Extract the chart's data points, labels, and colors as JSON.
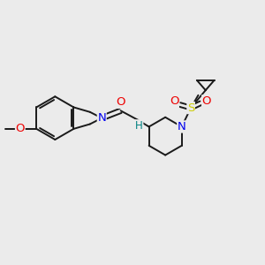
{
  "background_color": "#EBEBEB",
  "bond_color": "#1a1a1a",
  "nitrogen_color": "#0000EE",
  "oxygen_color": "#EE0000",
  "sulfur_color": "#CCCC00",
  "nh_color": "#008080",
  "bond_width": 1.4,
  "figsize": [
    3.0,
    3.0
  ],
  "dpi": 100,
  "xlim": [
    0,
    10
  ],
  "ylim": [
    0,
    10
  ]
}
